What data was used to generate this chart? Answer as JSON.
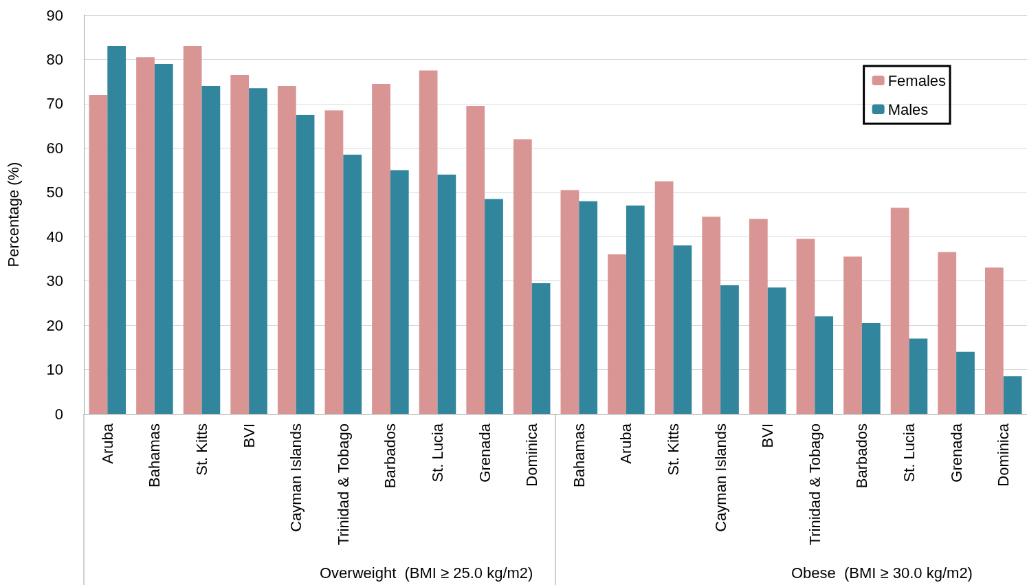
{
  "chart_data": {
    "type": "bar",
    "ylabel": "Percentage (%)",
    "categories": [
      "Aruba",
      "Bahamas",
      "St. Kitts",
      "BVI",
      "Cayman Islands",
      "Trinidad & Tobago",
      "Barbados",
      "St. Lucia",
      "Grenada",
      "Dominica",
      "Bahamas",
      "Aruba",
      "St. Kitts",
      "Cayman Islands",
      "BVI",
      "Trinidad & Tobago",
      "Barbados",
      "St. Lucia",
      "Grenada",
      "Dominica"
    ],
    "series": [
      {
        "name": "Females",
        "color": "#d99594",
        "values": [
          72,
          80.5,
          83,
          76.5,
          74,
          68.5,
          74.5,
          77.5,
          69.5,
          62,
          50.5,
          36,
          52.5,
          44.5,
          44,
          39.5,
          35.5,
          46.5,
          36.5,
          33
        ]
      },
      {
        "name": "Males",
        "color": "#31859c",
        "values": [
          83,
          79,
          74,
          73.5,
          67.5,
          58.5,
          55,
          54,
          48.5,
          29.5,
          48,
          47,
          38,
          29,
          28.5,
          22,
          20.5,
          17,
          14,
          8.5
        ]
      }
    ],
    "ylim": [
      0,
      90
    ],
    "yticks": [
      0,
      10,
      20,
      30,
      40,
      50,
      60,
      70,
      80,
      90
    ],
    "grid": "y",
    "legend": "top right",
    "annotations": [
      "Overweight  (BMI ≥ 25.0 kg/m2)",
      "Obese  (BMI ≥ 30.0 kg/m2)"
    ]
  }
}
